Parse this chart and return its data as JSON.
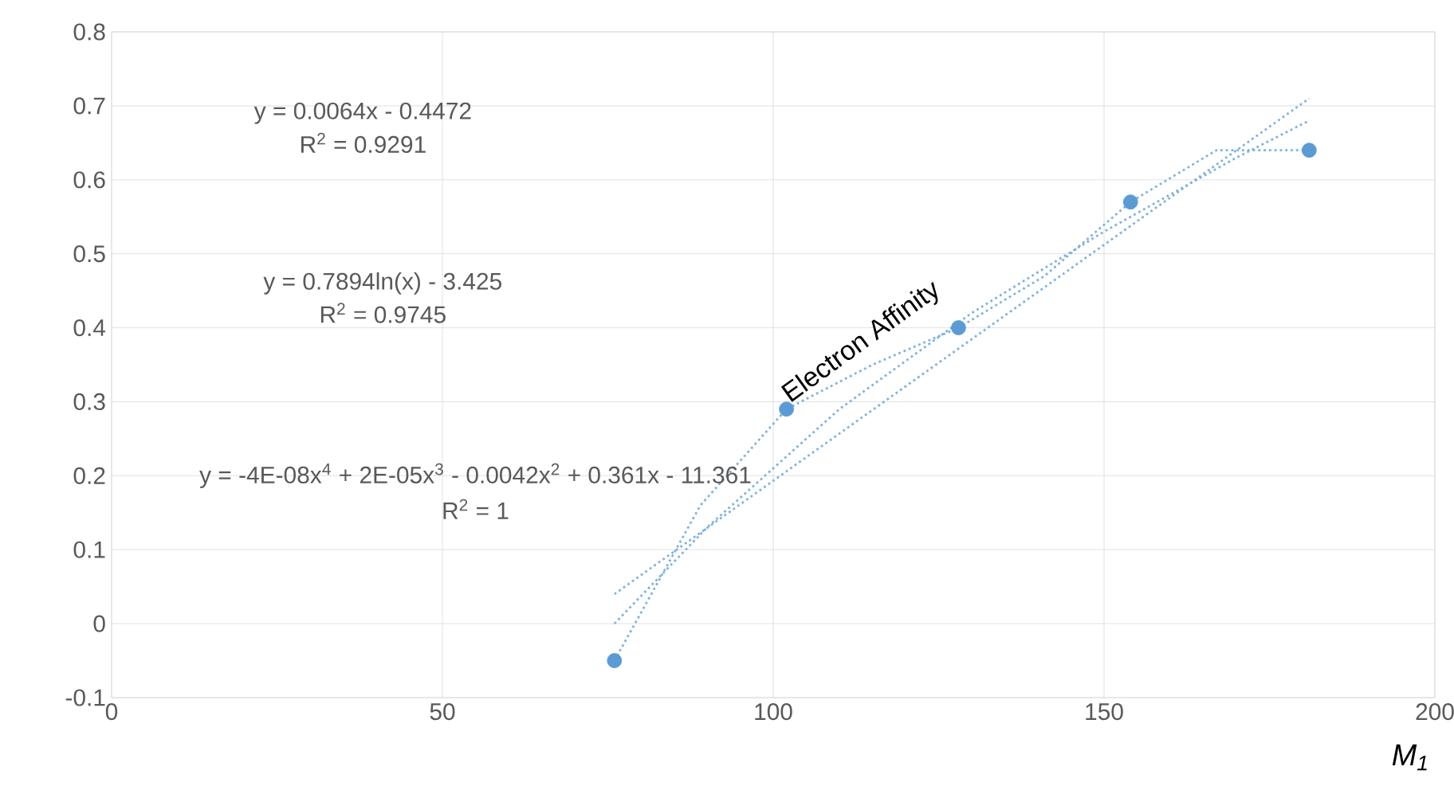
{
  "chart_data": {
    "type": "scatter",
    "xlabel": "M$_{1}$",
    "xlim": [
      0,
      200
    ],
    "xticks": [
      0,
      50,
      100,
      150,
      200
    ],
    "ylim": [
      -0.1,
      0.8
    ],
    "yticks": [
      -0.1,
      0,
      0.1,
      0.2,
      0.3,
      0.4,
      0.5,
      0.6,
      0.7,
      0.8
    ],
    "grid": true,
    "series": [
      {
        "name": "Electron Affinity",
        "marker": "circle",
        "color": "#5b9bd5",
        "x": [
          76,
          102,
          128,
          154,
          181
        ],
        "values": [
          -0.05,
          0.29,
          0.4,
          0.57,
          0.64
        ]
      },
      {
        "type": "line",
        "line_style": "dotted",
        "marker": "none",
        "color": "#7fb1de",
        "x": [
          76,
          181
        ],
        "values": [
          0.04,
          0.71
        ]
      },
      {
        "type": "line",
        "line_style": "dotted",
        "marker": "none",
        "color": "#7fb1de",
        "x": [
          76,
          90,
          110,
          130,
          150,
          170,
          181
        ],
        "values": [
          0.0,
          0.13,
          0.29,
          0.42,
          0.53,
          0.63,
          0.68
        ]
      },
      {
        "type": "line",
        "line_style": "dotted",
        "marker": "none",
        "color": "#7fb1de",
        "x": [
          76,
          89,
          102,
          115,
          128,
          141,
          154,
          167,
          181
        ],
        "values": [
          -0.05,
          0.16,
          0.29,
          0.35,
          0.4,
          0.47,
          0.57,
          0.64,
          0.64
        ]
      }
    ],
    "annotations": [
      "y = 0.0064x - 0.4472",
      "R$^{2}$ = 0.9291",
      "y = 0.7894ln(x) - 3.425",
      "R$^{2}$ = 0.9745",
      "y = -4E-08x$^{4}$ + 2E-05x$^{3}$ - 0.0042x$^{2}$ + 0.361x - 11.361",
      "R$^{2}$ = 1"
    ]
  }
}
